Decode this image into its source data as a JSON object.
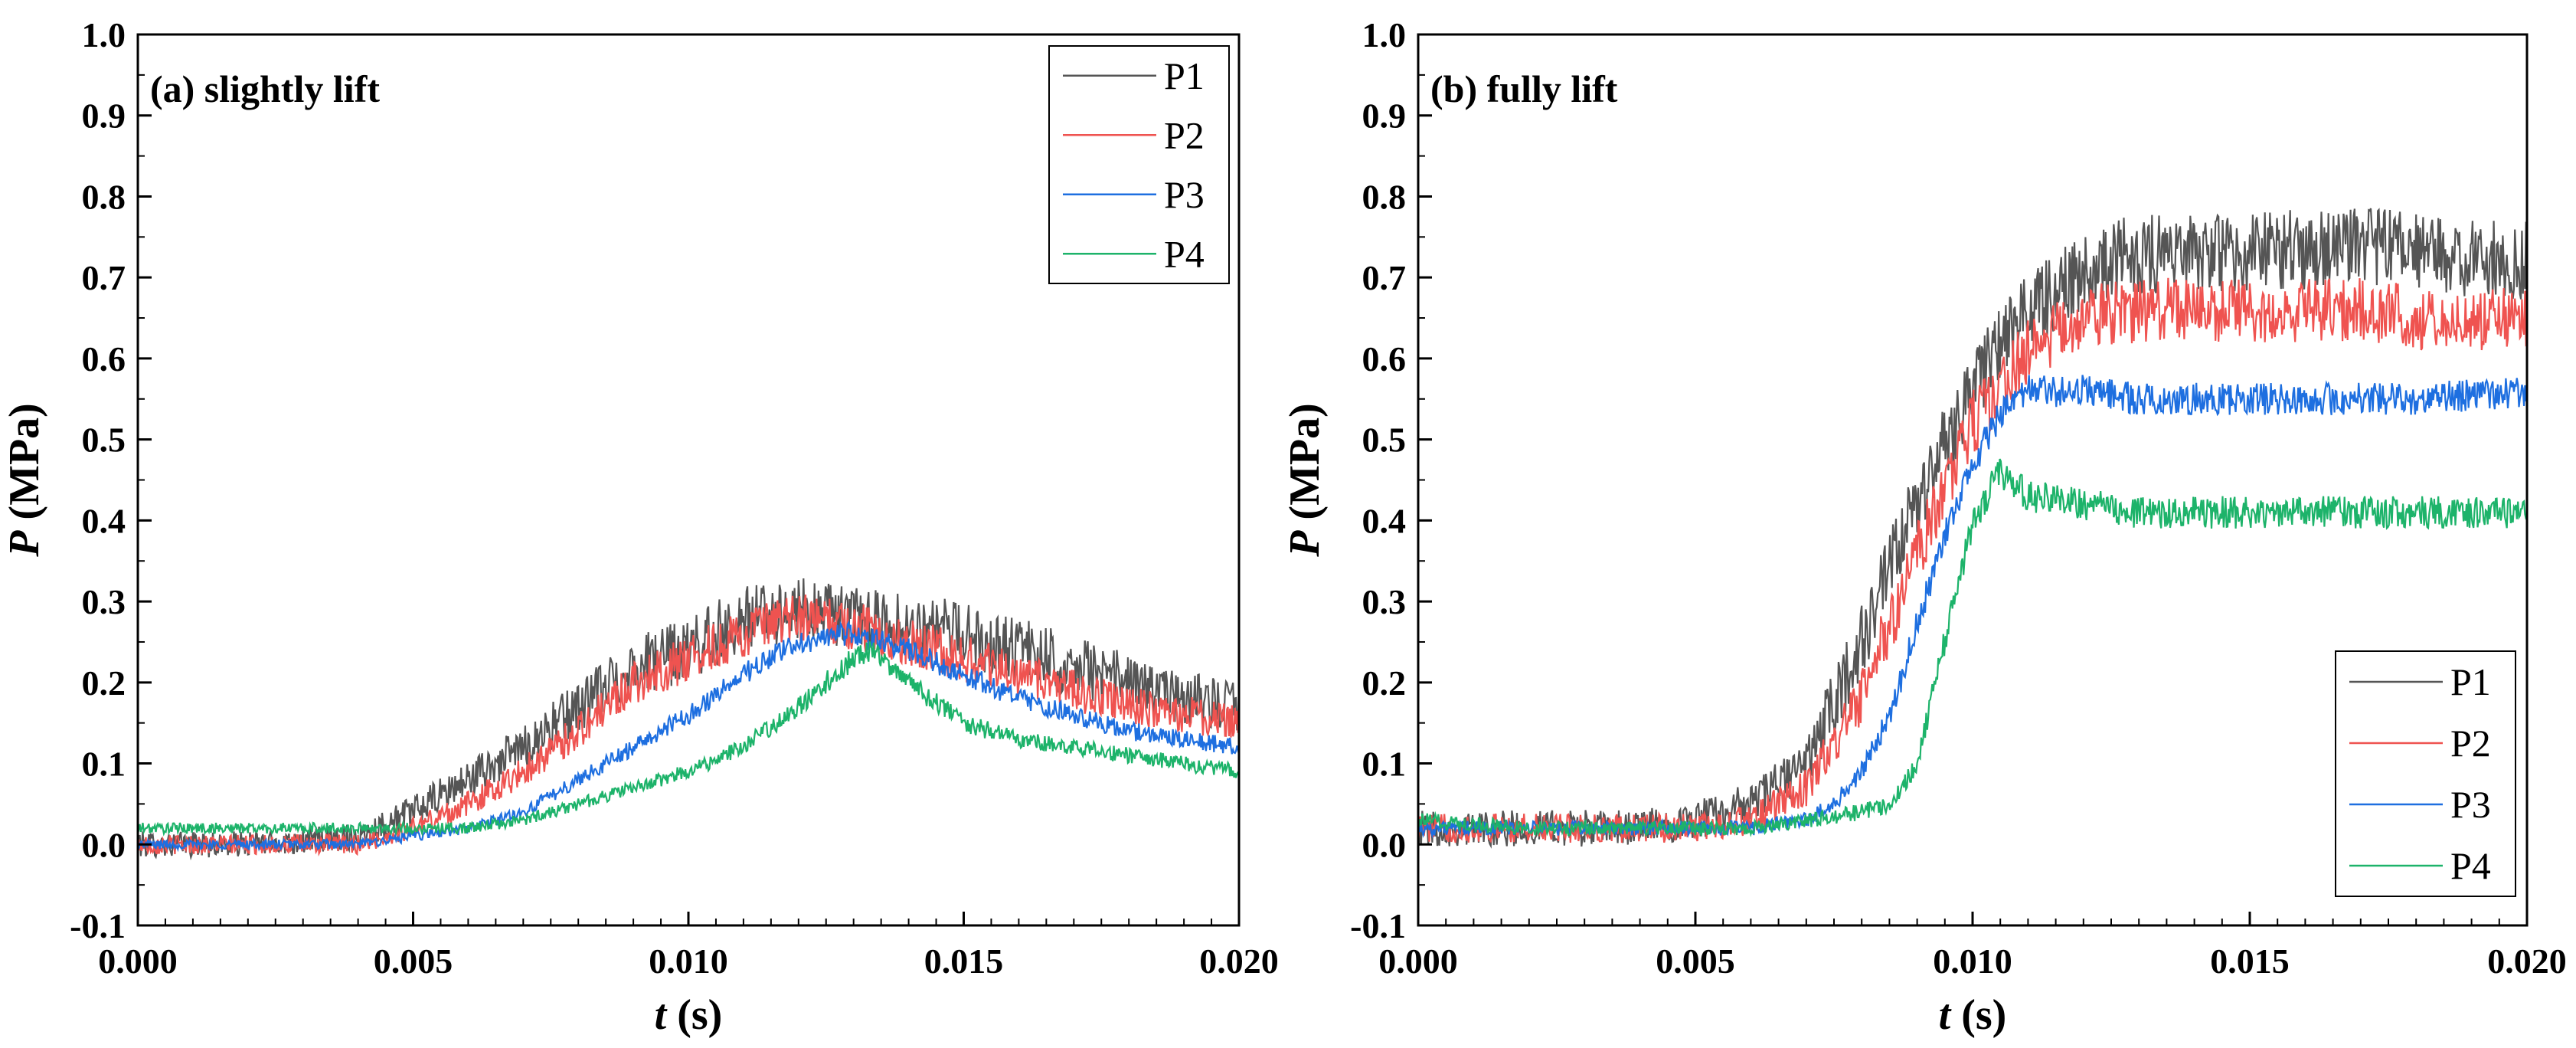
{
  "colors": {
    "P1": "#555555",
    "P2": "#ef5350",
    "P3": "#1e6fe0",
    "P4": "#1db36a"
  },
  "chart_data": [
    {
      "type": "line",
      "panel_label": "(a) slightly lift",
      "xlabel_var": "t",
      "xlabel_unit": " (s)",
      "ylabel_var": "P",
      "ylabel_unit": " (MPa)",
      "xlim": [
        0,
        0.02
      ],
      "ylim": [
        -0.1,
        1.0
      ],
      "xticks": [
        "0.000",
        "0.005",
        "0.010",
        "0.015",
        "0.020"
      ],
      "yticks": [
        "-0.1",
        "0.0",
        "0.1",
        "0.2",
        "0.3",
        "0.4",
        "0.5",
        "0.6",
        "0.7",
        "0.8",
        "0.9",
        "1.0"
      ],
      "legend_position": "top-right",
      "series": [
        {
          "name": "P1",
          "x": [
            0,
            0.002,
            0.004,
            0.005,
            0.006,
            0.007,
            0.008,
            0.009,
            0.01,
            0.011,
            0.012,
            0.013,
            0.014,
            0.015,
            0.016,
            0.017,
            0.018,
            0.019,
            0.02
          ],
          "y": [
            0.0,
            0.0,
            0.01,
            0.04,
            0.08,
            0.12,
            0.17,
            0.22,
            0.24,
            0.28,
            0.29,
            0.28,
            0.27,
            0.26,
            0.24,
            0.22,
            0.2,
            0.18,
            0.17
          ],
          "noise": 0.04
        },
        {
          "name": "P2",
          "x": [
            0,
            0.002,
            0.004,
            0.005,
            0.006,
            0.007,
            0.008,
            0.009,
            0.01,
            0.011,
            0.012,
            0.013,
            0.014,
            0.015,
            0.016,
            0.017,
            0.018,
            0.019,
            0.02
          ],
          "y": [
            0.0,
            0.0,
            0.0,
            0.02,
            0.05,
            0.09,
            0.14,
            0.2,
            0.23,
            0.26,
            0.28,
            0.27,
            0.25,
            0.23,
            0.21,
            0.19,
            0.17,
            0.16,
            0.15
          ],
          "noise": 0.03
        },
        {
          "name": "P3",
          "x": [
            0,
            0.002,
            0.004,
            0.005,
            0.006,
            0.007,
            0.008,
            0.009,
            0.01,
            0.011,
            0.012,
            0.013,
            0.014,
            0.015,
            0.016,
            0.017,
            0.018,
            0.019,
            0.02
          ],
          "y": [
            0.0,
            0.0,
            0.0,
            0.01,
            0.02,
            0.04,
            0.08,
            0.12,
            0.16,
            0.21,
            0.25,
            0.26,
            0.24,
            0.21,
            0.18,
            0.16,
            0.14,
            0.13,
            0.12
          ],
          "noise": 0.015
        },
        {
          "name": "P4",
          "x": [
            0,
            0.002,
            0.004,
            0.005,
            0.006,
            0.007,
            0.008,
            0.009,
            0.01,
            0.011,
            0.012,
            0.013,
            0.0133,
            0.014,
            0.015,
            0.016,
            0.017,
            0.018,
            0.019,
            0.02
          ],
          "y": [
            0.02,
            0.02,
            0.02,
            0.02,
            0.02,
            0.03,
            0.05,
            0.07,
            0.09,
            0.12,
            0.17,
            0.23,
            0.24,
            0.2,
            0.15,
            0.13,
            0.12,
            0.11,
            0.1,
            0.09
          ],
          "noise": 0.015
        }
      ]
    },
    {
      "type": "line",
      "panel_label": "(b) fully lift",
      "xlabel_var": "t",
      "xlabel_unit": " (s)",
      "ylabel_var": "P",
      "ylabel_unit": " (MPa)",
      "xlim": [
        0,
        0.02
      ],
      "ylim": [
        -0.1,
        1.0
      ],
      "xticks": [
        "0.000",
        "0.005",
        "0.010",
        "0.015",
        "0.020"
      ],
      "yticks": [
        "-0.1",
        "0.0",
        "0.1",
        "0.2",
        "0.3",
        "0.4",
        "0.5",
        "0.6",
        "0.7",
        "0.8",
        "0.9",
        "1.0"
      ],
      "legend_position": "bottom-right",
      "series": [
        {
          "name": "P1",
          "x": [
            0,
            0.002,
            0.004,
            0.005,
            0.006,
            0.007,
            0.008,
            0.009,
            0.01,
            0.011,
            0.012,
            0.013,
            0.015,
            0.017,
            0.018,
            0.019,
            0.02
          ],
          "y": [
            0.02,
            0.02,
            0.02,
            0.03,
            0.05,
            0.1,
            0.25,
            0.42,
            0.57,
            0.66,
            0.71,
            0.73,
            0.73,
            0.74,
            0.73,
            0.72,
            0.72
          ],
          "noise": 0.05
        },
        {
          "name": "P2",
          "x": [
            0,
            0.002,
            0.004,
            0.005,
            0.006,
            0.007,
            0.008,
            0.009,
            0.01,
            0.011,
            0.012,
            0.013,
            0.015,
            0.017,
            0.018,
            0.019,
            0.02
          ],
          "y": [
            0.02,
            0.02,
            0.02,
            0.02,
            0.03,
            0.07,
            0.18,
            0.36,
            0.52,
            0.61,
            0.65,
            0.66,
            0.66,
            0.66,
            0.65,
            0.65,
            0.65
          ],
          "noise": 0.04
        },
        {
          "name": "P3",
          "x": [
            0,
            0.002,
            0.004,
            0.005,
            0.006,
            0.007,
            0.0075,
            0.008,
            0.0085,
            0.009,
            0.0095,
            0.01,
            0.0105,
            0.011,
            0.012,
            0.013,
            0.015,
            0.017,
            0.018,
            0.02
          ],
          "y": [
            0.02,
            0.02,
            0.02,
            0.02,
            0.02,
            0.03,
            0.05,
            0.09,
            0.16,
            0.27,
            0.38,
            0.47,
            0.53,
            0.56,
            0.56,
            0.55,
            0.55,
            0.55,
            0.55,
            0.56
          ],
          "noise": 0.02
        },
        {
          "name": "P4",
          "x": [
            0,
            0.002,
            0.004,
            0.005,
            0.006,
            0.007,
            0.008,
            0.0085,
            0.009,
            0.0095,
            0.01,
            0.0105,
            0.011,
            0.012,
            0.013,
            0.015,
            0.017,
            0.018,
            0.02
          ],
          "y": [
            0.03,
            0.02,
            0.02,
            0.02,
            0.02,
            0.03,
            0.04,
            0.05,
            0.1,
            0.25,
            0.4,
            0.46,
            0.43,
            0.42,
            0.41,
            0.41,
            0.41,
            0.41,
            0.41
          ],
          "noise": 0.02
        }
      ]
    }
  ]
}
